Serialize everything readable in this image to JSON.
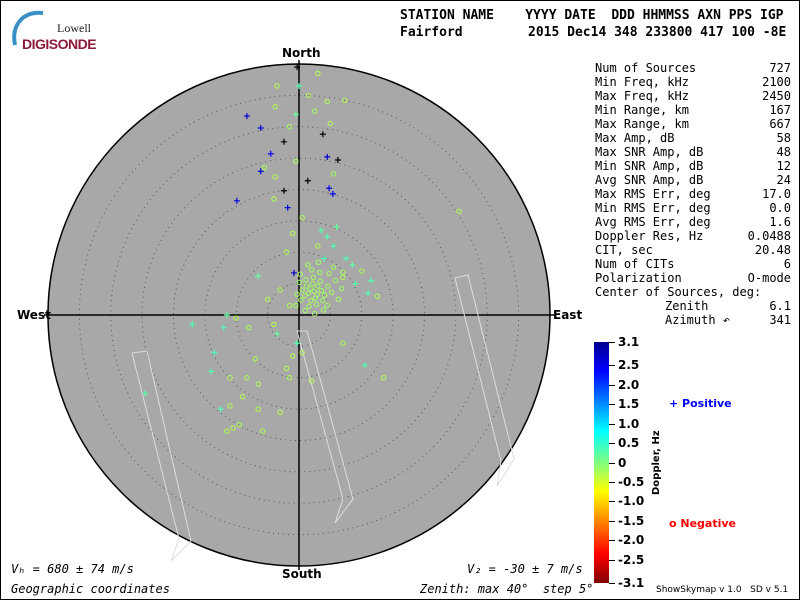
{
  "logo": {
    "line1": "Lowell",
    "line2": "DIGISONDE"
  },
  "header": {
    "labels": "STATION NAME    YYYY DATE  DDD HHMMSS AXN PPS IGP",
    "station": "Fairford",
    "values": "2015 Dec14 348 233800 417 100 -8E"
  },
  "stats": [
    {
      "label": "Num of Sources",
      "value": "727"
    },
    {
      "label": "Min Freq, kHz",
      "value": "2100"
    },
    {
      "label": "Max Freq, kHz",
      "value": "2450"
    },
    {
      "label": "Min Range, km",
      "value": "167"
    },
    {
      "label": "Max Range, km",
      "value": "667"
    },
    {
      "label": "Max Amp, dB",
      "value": "58"
    },
    {
      "label": "Max SNR Amp, dB",
      "value": "48"
    },
    {
      "label": "Min SNR Amp, dB",
      "value": "12"
    },
    {
      "label": "Avg SNR Amp, dB",
      "value": "24"
    },
    {
      "label": "Max RMS Err, deg",
      "value": "17.0"
    },
    {
      "label": "Min RMS Err, deg",
      "value": "0.0"
    },
    {
      "label": "Avg RMS Err, deg",
      "value": "1.6"
    },
    {
      "label": "Doppler Res, Hz",
      "value": "0.0488"
    },
    {
      "label": "CIT, sec",
      "value": "20.48"
    },
    {
      "label": "Num of CITs",
      "value": "6"
    },
    {
      "label": "Polarization",
      "value": "O-mode"
    },
    {
      "label": "Center of Sources, deg:",
      "value": ""
    },
    {
      "label": "Zenith",
      "value": "6.1"
    },
    {
      "label": "Azimuth ↶",
      "value": "341"
    }
  ],
  "footer": {
    "vh": "Vₕ = 680 ± 74 m/s",
    "vz": "V₂ = -30 ± 7 m/s",
    "coords": "Geographic coordinates",
    "zenith": "Zenith: max 40°  step 5°",
    "version": "ShowSkymap v 1.0   SD v 5.1"
  },
  "chart_data": {
    "type": "scatter",
    "projection": "polar skymap",
    "directions": {
      "north": "North",
      "south": "South",
      "east": "East",
      "west": "West"
    },
    "zenith_max": 40,
    "zenith_step": 5,
    "colorbar": {
      "label": "Doppler, Hz",
      "range": [
        -3.1,
        3.1
      ],
      "ticks": [
        "3.1",
        "2.5",
        "2.0",
        "1.5",
        "1.0",
        "0.5",
        "0",
        "-0.5",
        "-1.0",
        "-1.5",
        "-2.0",
        "-2.5",
        "-3.1"
      ]
    },
    "legend": {
      "positive": "Positive",
      "negative": "Negative",
      "positive_color": "#0000ff",
      "negative_color": "#ff0000"
    },
    "point_format": [
      "east_deg",
      "north_deg",
      "doppler_hz"
    ],
    "positive_sources": [
      [
        -8.3,
        31.7,
        2.6
      ],
      [
        -6.1,
        29.8,
        2.6
      ],
      [
        -4.5,
        25.7,
        2.4
      ],
      [
        4.5,
        25.2,
        2.6
      ],
      [
        -9.9,
        18.2,
        2.5
      ],
      [
        -1.8,
        17.1,
        2.6
      ],
      [
        4.8,
        20.2,
        2.5
      ],
      [
        5.4,
        19.3,
        2.4
      ],
      [
        -6.1,
        22.9,
        2.6
      ],
      [
        -0.8,
        6.7,
        2.7
      ],
      [
        -0.3,
        39.5,
        3.1
      ],
      [
        3.8,
        28.8,
        3.1
      ],
      [
        -2.4,
        27.6,
        3.1
      ],
      [
        6.2,
        24.7,
        3.1
      ],
      [
        -2.4,
        19.8,
        3.1
      ],
      [
        1.4,
        21.4,
        3.1
      ],
      [
        0,
        36.5,
        0.3
      ],
      [
        -0.5,
        32,
        0.2
      ],
      [
        4.5,
        12.5,
        0.3
      ],
      [
        5.5,
        11,
        0.3
      ],
      [
        6,
        14,
        0.2
      ],
      [
        3.5,
        13.5,
        0.3
      ],
      [
        4,
        9,
        0.3
      ],
      [
        7.5,
        9,
        0.3
      ],
      [
        8.5,
        8,
        0.2
      ],
      [
        9,
        5,
        0.3
      ],
      [
        11.5,
        5.5,
        0.3
      ],
      [
        11,
        3.5,
        0.3
      ],
      [
        -6.5,
        6.2,
        0.2
      ],
      [
        -12,
        -2,
        0.3
      ],
      [
        -13.5,
        -6,
        0.3
      ],
      [
        -14,
        -9,
        0.3
      ],
      [
        -24.5,
        -12.5,
        0.3
      ],
      [
        -3.5,
        -3,
        0.2
      ],
      [
        -0.3,
        -4.5,
        0.3
      ],
      [
        10.5,
        -8,
        0.3
      ],
      [
        -12.5,
        -15,
        0.3
      ],
      [
        -17,
        -1.5,
        0.3
      ],
      [
        -11.5,
        0,
        0.2
      ]
    ],
    "negative_sources": [
      [
        -3.5,
        36.5,
        -0.3
      ],
      [
        3,
        38.5,
        -0.3
      ],
      [
        1.5,
        35,
        -0.3
      ],
      [
        4.5,
        34,
        -0.3
      ],
      [
        7.3,
        34.2,
        -0.3
      ],
      [
        -3.8,
        33.2,
        -0.3
      ],
      [
        2.5,
        32.5,
        -0.2
      ],
      [
        -1.5,
        30,
        -0.3
      ],
      [
        5,
        30.5,
        -0.3
      ],
      [
        -5.5,
        23.5,
        -0.3
      ],
      [
        -3.8,
        22,
        -0.3
      ],
      [
        -0.5,
        24.5,
        -0.3
      ],
      [
        5.5,
        22.5,
        -0.2
      ],
      [
        -4,
        18.5,
        -0.3
      ],
      [
        0.5,
        15.5,
        -0.3
      ],
      [
        -1,
        13,
        -0.3
      ],
      [
        3,
        11,
        -0.3
      ],
      [
        25.5,
        16.5,
        -0.3
      ],
      [
        -2,
        10,
        -0.3
      ],
      [
        7,
        6,
        -0.3
      ],
      [
        10,
        7,
        -0.3
      ],
      [
        12.5,
        3,
        -0.3
      ],
      [
        -3,
        4,
        -0.3
      ],
      [
        -1.5,
        1.5,
        -0.3
      ],
      [
        -5,
        2.5,
        -0.3
      ],
      [
        -10,
        -0.5,
        -0.3
      ],
      [
        -4,
        -1.5,
        -0.3
      ],
      [
        -8,
        -2,
        -0.3
      ],
      [
        -7,
        -7,
        -0.3
      ],
      [
        -6.5,
        -11,
        -0.3
      ],
      [
        -8.3,
        -10,
        -0.3
      ],
      [
        -9,
        -13,
        -0.3
      ],
      [
        -11,
        -14.5,
        -0.3
      ],
      [
        -9.5,
        -17.5,
        -0.3
      ],
      [
        -11.5,
        -18.5,
        -0.3
      ],
      [
        -2,
        -8.5,
        -0.3
      ],
      [
        -1.5,
        -10,
        -0.3
      ],
      [
        0.5,
        -6,
        -0.3
      ],
      [
        2,
        -10.5,
        -0.3
      ],
      [
        7,
        -4.5,
        -0.3
      ],
      [
        13.5,
        -10,
        -0.3
      ],
      [
        -1,
        -6.5,
        -0.3
      ],
      [
        -3,
        -15.5,
        -0.3
      ],
      [
        -10.5,
        -18,
        -0.3
      ],
      [
        -5.8,
        -18.5,
        -0.3
      ],
      [
        -11,
        -10,
        -0.3
      ],
      [
        -6.5,
        -15,
        -0.3
      ],
      [
        2.4,
        3.8,
        -0.2
      ],
      [
        1.8,
        4.2,
        -0.2
      ],
      [
        3,
        4.6,
        -0.2
      ],
      [
        2.9,
        3.3,
        -0.2
      ],
      [
        1.5,
        3.5,
        -0.2
      ],
      [
        2.2,
        5,
        -0.2
      ],
      [
        3.6,
        3.9,
        -0.2
      ],
      [
        1.2,
        4.6,
        -0.2
      ],
      [
        2.6,
        2.7,
        -0.2
      ],
      [
        0.9,
        3.1,
        -0.2
      ],
      [
        3.4,
        5.4,
        -0.2
      ],
      [
        4.1,
        3.2,
        -0.2
      ],
      [
        1.9,
        2.3,
        -0.2
      ],
      [
        2.3,
        6,
        -0.2
      ],
      [
        0.5,
        4,
        -0.2
      ],
      [
        3.8,
        2.3,
        -0.2
      ],
      [
        4.6,
        4.6,
        -0.2
      ],
      [
        1.1,
        5.6,
        -0.2
      ],
      [
        2.8,
        1.7,
        -0.2
      ],
      [
        0.3,
        2.4,
        -0.2
      ],
      [
        5.2,
        3.6,
        -0.2
      ],
      [
        1.6,
        1.4,
        -0.2
      ],
      [
        3.3,
        6.8,
        -0.2
      ],
      [
        0.1,
        5.2,
        -0.2
      ],
      [
        4.5,
        1.5,
        -0.2
      ],
      [
        2,
        7.2,
        -0.2
      ],
      [
        5.8,
        5.5,
        -0.2
      ],
      [
        -0.3,
        3.3,
        -0.2
      ],
      [
        3.9,
        0.8,
        -0.2
      ],
      [
        1,
        0.7,
        -0.2
      ],
      [
        6.3,
        2.5,
        -0.2
      ],
      [
        2.5,
        0.2,
        -0.2
      ],
      [
        4.8,
        6.6,
        -0.2
      ],
      [
        -0.5,
        1.5,
        -0.2
      ],
      [
        6.8,
        4.2,
        -0.2
      ],
      [
        1.4,
        8,
        -0.2
      ],
      [
        3.1,
        8.4,
        -0.2
      ],
      [
        5.5,
        7.6,
        -0.2
      ],
      [
        7,
        6.8,
        -0.2
      ],
      [
        0.2,
        6.5,
        -0.2
      ]
    ]
  }
}
